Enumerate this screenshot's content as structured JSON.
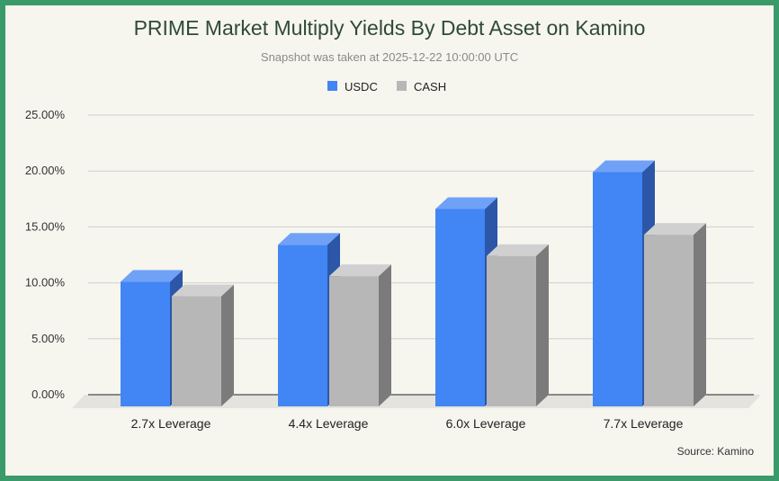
{
  "chart_data": {
    "type": "bar",
    "title": "PRIME Market Multiply Yields By Debt Asset on Kamino",
    "subtitle": "Snapshot was taken at 2025-12-22 10:00:00 UTC",
    "categories": [
      "2.7x Leverage",
      "4.4x Leverage",
      "6.0x Leverage",
      "7.7x Leverage"
    ],
    "series": [
      {
        "name": "USDC",
        "values": [
          10.1,
          13.4,
          16.6,
          19.9
        ],
        "color": "#4285f4",
        "dark": "#2c57a8",
        "top": "#6fa1f7"
      },
      {
        "name": "CASH",
        "values": [
          8.8,
          10.6,
          12.4,
          14.3
        ],
        "color": "#b7b7b7",
        "dark": "#7b7b7b",
        "top": "#d0d0d0"
      }
    ],
    "ylim": [
      0,
      25
    ],
    "yticks": [
      "0.00%",
      "5.00%",
      "10.00%",
      "15.00%",
      "20.00%",
      "25.00%"
    ],
    "legend_position": "top",
    "grid": true,
    "source": "Source: Kamino"
  }
}
